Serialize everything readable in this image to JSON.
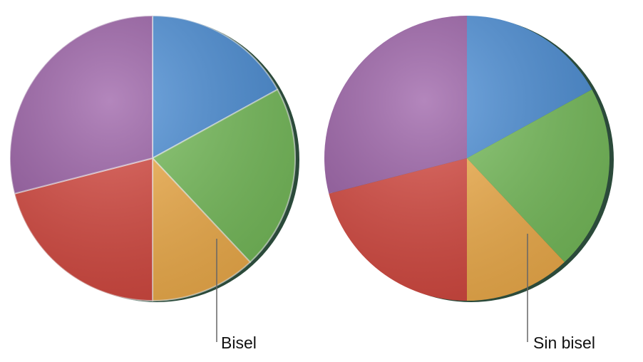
{
  "chart_data": [
    {
      "type": "pie",
      "annotation": "Bisel",
      "beveled": true,
      "categories": [
        "blue",
        "green",
        "orange",
        "red",
        "purple"
      ],
      "values": [
        17,
        21,
        12,
        21,
        29
      ],
      "colors": [
        "#4b8fd8",
        "#78c05c",
        "#f5b14c",
        "#d8483f",
        "#9a5ea6"
      ]
    },
    {
      "type": "pie",
      "annotation": "Sin bisel",
      "beveled": false,
      "categories": [
        "blue",
        "green",
        "orange",
        "red",
        "purple"
      ],
      "values": [
        17,
        21,
        12,
        21,
        29
      ],
      "colors": [
        "#4b8fd8",
        "#78c05c",
        "#f5b14c",
        "#d8483f",
        "#9a5ea6"
      ]
    }
  ]
}
